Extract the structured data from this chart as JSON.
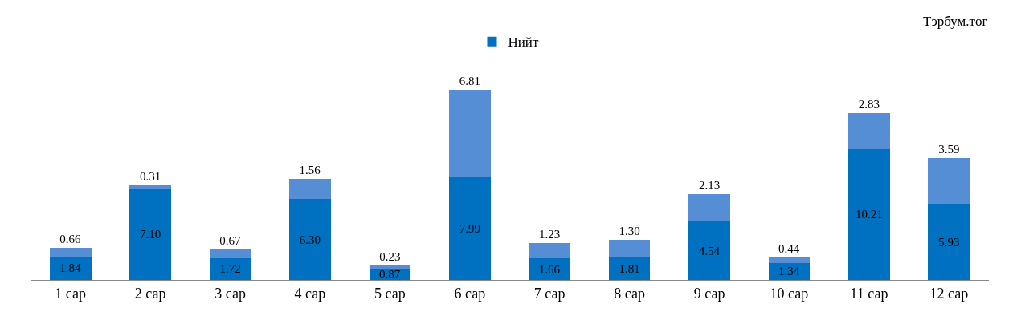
{
  "chart_data": {
    "type": "bar",
    "stacked": true,
    "legend": "top",
    "annotations": [
      "Тэрбум.төг"
    ],
    "categories": [
      "1 сар",
      "2 сар",
      "3 сар",
      "4 сар",
      "5 сар",
      "6 сар",
      "7 сар",
      "8 сар",
      "9 сар",
      "10 сар",
      "11 сар",
      "12 сар"
    ],
    "series": [
      {
        "name": "Нийт",
        "color": "#0070c0",
        "values": [
          1.84,
          7.1,
          1.72,
          6.3,
          0.87,
          7.99,
          1.66,
          1.81,
          4.54,
          1.34,
          10.21,
          5.93
        ],
        "value_labels": [
          "1.84",
          "7.10",
          "1.72",
          "6.30",
          "0.87",
          "7.99",
          "1.66",
          "1.81",
          "4.54",
          "1.34",
          "10.21",
          "5.93"
        ]
      },
      {
        "color": "#558ed5",
        "values": [
          0.66,
          0.31,
          0.67,
          1.56,
          0.23,
          6.81,
          1.23,
          1.3,
          2.13,
          0.44,
          2.83,
          3.59
        ],
        "value_labels": [
          "0.66",
          "0.31",
          "0.67",
          "1.56",
          "0.23",
          "6.81",
          "1.23",
          "1.30",
          "2.13",
          "0.44",
          "2.83",
          "3.59"
        ]
      }
    ]
  }
}
